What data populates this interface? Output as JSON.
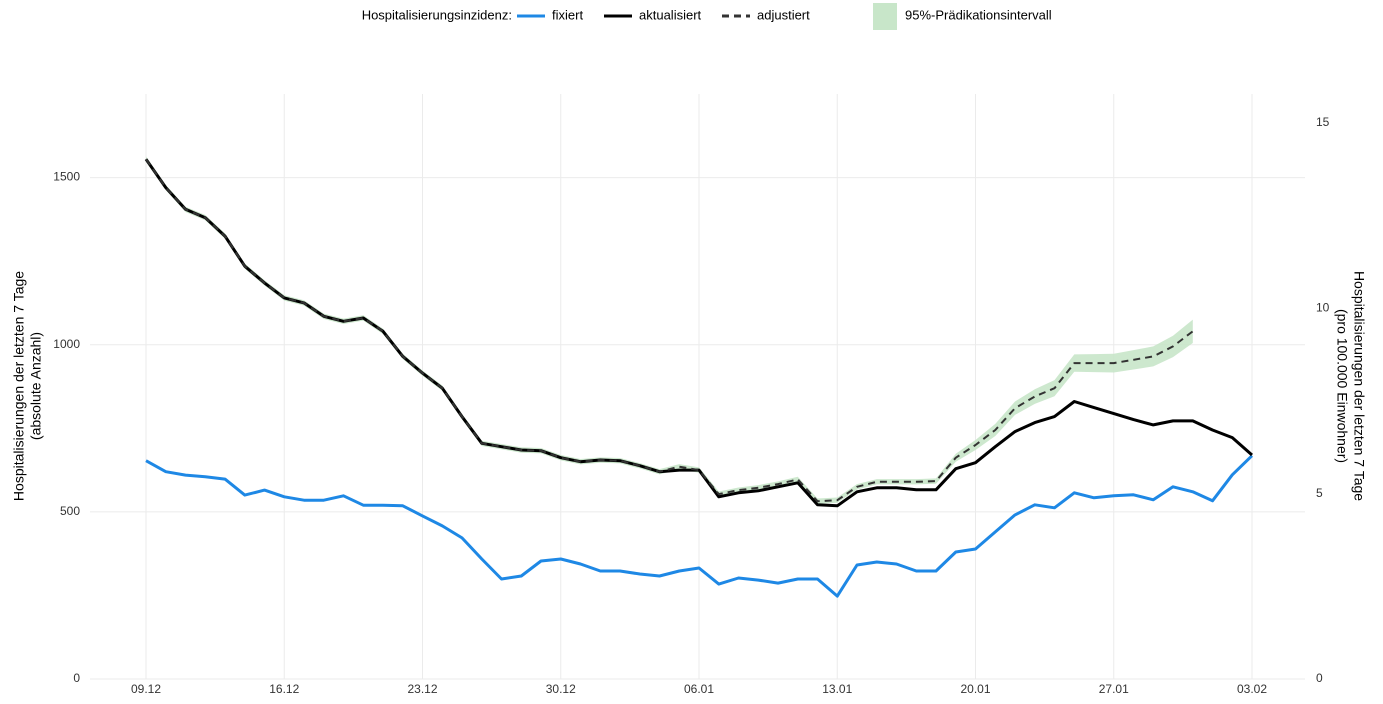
{
  "chart_data": {
    "type": "line",
    "legend_title": "Hospitalisierungsinzidenz:",
    "ylabel": [
      "Hospitalisierungen der letzten 7 Tage",
      "(absolute Anzahl)"
    ],
    "y2label": [
      "Hospitalisierungen der letzten 7 Tage",
      "(pro 100.000 Einwohner)"
    ],
    "categories": [
      "09.12",
      null,
      null,
      null,
      null,
      null,
      null,
      "16.12",
      null,
      null,
      null,
      null,
      null,
      null,
      "23.12",
      null,
      null,
      null,
      null,
      null,
      null,
      "30.12",
      null,
      null,
      null,
      null,
      null,
      null,
      "06.01",
      null,
      null,
      null,
      null,
      null,
      null,
      "13.01",
      null,
      null,
      null,
      null,
      null,
      null,
      "20.01",
      null,
      null,
      null,
      null,
      null,
      null,
      "27.01",
      null,
      null,
      null,
      null,
      null,
      null,
      "03.02"
    ],
    "ylim": [
      0,
      1750
    ],
    "yticks": [
      0,
      500,
      1000,
      1500
    ],
    "y2lim": [
      0,
      15.78
    ],
    "y2ticks": [
      0,
      5,
      10,
      15
    ],
    "grid": true,
    "series": [
      {
        "name": "fixiert",
        "color": "#1e88e5",
        "values": [
          653,
          620,
          610,
          605,
          598,
          550,
          565,
          545,
          535,
          535,
          548,
          520,
          520,
          518,
          488,
          458,
          422,
          359,
          299,
          308,
          353,
          359,
          344,
          323,
          323,
          314,
          308,
          323,
          332,
          284,
          302,
          296,
          287,
          299,
          299,
          248,
          341,
          350,
          344,
          323,
          323,
          380,
          389,
          440,
          491,
          521,
          512,
          557,
          542,
          548,
          551,
          536,
          575,
          560,
          533,
          611,
          668
        ]
      },
      {
        "name": "aktualisiert",
        "color": "#000000",
        "values": [
          1555,
          1470,
          1405,
          1380,
          1325,
          1235,
          1185,
          1140,
          1125,
          1085,
          1070,
          1080,
          1040,
          965,
          915,
          870,
          785,
          705,
          695,
          685,
          683,
          662,
          650,
          655,
          653,
          638,
          620,
          625,
          625,
          545,
          557,
          563,
          575,
          587,
          521,
          518,
          560,
          572,
          572,
          566,
          566,
          629,
          647,
          695,
          740,
          767,
          785,
          830,
          812,
          794,
          776,
          760,
          772,
          772,
          745,
          722,
          670
        ]
      },
      {
        "name": "adjustiert",
        "color": "#333333",
        "dashed": true,
        "values": [
          1555,
          1470,
          1405,
          1380,
          1325,
          1235,
          1185,
          1140,
          1125,
          1085,
          1070,
          1080,
          1040,
          965,
          915,
          870,
          785,
          705,
          695,
          685,
          683,
          662,
          650,
          655,
          653,
          638,
          620,
          635,
          625,
          553,
          565,
          572,
          583,
          597,
          532,
          535,
          575,
          590,
          590,
          590,
          592,
          662,
          700,
          745,
          810,
          845,
          870,
          945,
          945,
          945,
          955,
          965,
          995,
          1040,
          null,
          null,
          null
        ]
      },
      {
        "name": "95%-Prädikationsintervall",
        "color": "#c8e6c9",
        "lower": [
          1547,
          1462,
          1397,
          1372,
          1317,
          1227,
          1177,
          1132,
          1117,
          1077,
          1062,
          1072,
          1032,
          957,
          907,
          862,
          777,
          697,
          687,
          677,
          675,
          654,
          642,
          647,
          645,
          630,
          612,
          627,
          617,
          545,
          557,
          564,
          575,
          589,
          524,
          527,
          567,
          582,
          582,
          582,
          584,
          650,
          685,
          727,
          790,
          823,
          846,
          919,
          918,
          917,
          926,
          935,
          963,
          1005,
          null,
          null,
          null
        ],
        "upper": [
          1563,
          1478,
          1413,
          1388,
          1333,
          1243,
          1193,
          1148,
          1133,
          1093,
          1078,
          1088,
          1048,
          973,
          923,
          878,
          793,
          713,
          703,
          693,
          691,
          670,
          658,
          663,
          661,
          646,
          628,
          643,
          633,
          561,
          573,
          580,
          591,
          605,
          540,
          543,
          583,
          598,
          598,
          598,
          600,
          674,
          715,
          763,
          830,
          867,
          894,
          971,
          972,
          973,
          984,
          995,
          1027,
          1075,
          null,
          null,
          null
        ]
      }
    ]
  }
}
